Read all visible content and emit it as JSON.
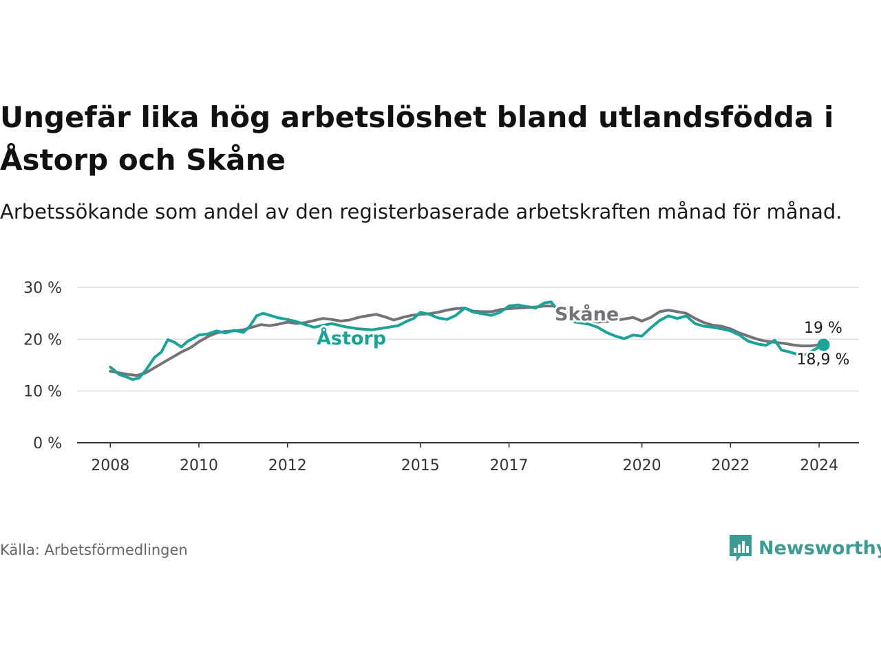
{
  "title": "Ungefär lika hög arbetslöshet bland utlandsfödda i Åstorp och Skåne",
  "subtitle": "Arbetssökande som andel av den registerbaserade arbetskraften månad för månad.",
  "source": "Källa: Arbetsförmedlingen",
  "brand": {
    "name": "Newsworthy",
    "color": "#3a9c93"
  },
  "chart_data": {
    "type": "line",
    "y_ticks": [
      "0 %",
      "10 %",
      "20 %",
      "30 %"
    ],
    "y_tick_values": [
      0,
      10,
      20,
      30
    ],
    "ylim": [
      0,
      30
    ],
    "x_ticks": [
      "2008",
      "2010",
      "2012",
      "2015",
      "2017",
      "2020",
      "2022",
      "2024"
    ],
    "x_tick_values": [
      2008,
      2010,
      2012,
      2015,
      2017,
      2020,
      2022,
      2024
    ],
    "xlim": [
      2007.25,
      2024.9
    ],
    "grid": true,
    "series": [
      {
        "name": "Skåne",
        "label": "Skåne",
        "end_label": "19 %",
        "color": "#737278",
        "points": [
          [
            2008,
            13.8
          ],
          [
            2008.2,
            13.5
          ],
          [
            2008.4,
            13.2
          ],
          [
            2008.6,
            13.0
          ],
          [
            2008.8,
            13.5
          ],
          [
            2009,
            14.5
          ],
          [
            2009.2,
            15.5
          ],
          [
            2009.4,
            16.5
          ],
          [
            2009.6,
            17.5
          ],
          [
            2009.8,
            18.3
          ],
          [
            2010,
            19.5
          ],
          [
            2010.2,
            20.5
          ],
          [
            2010.4,
            21.2
          ],
          [
            2010.6,
            21.5
          ],
          [
            2010.8,
            21.6
          ],
          [
            2011,
            21.8
          ],
          [
            2011.2,
            22.3
          ],
          [
            2011.4,
            22.8
          ],
          [
            2011.6,
            22.6
          ],
          [
            2011.8,
            22.9
          ],
          [
            2012,
            23.3
          ],
          [
            2012.2,
            23.0
          ],
          [
            2012.4,
            23.2
          ],
          [
            2012.6,
            23.6
          ],
          [
            2012.8,
            24.0
          ],
          [
            2013,
            23.8
          ],
          [
            2013.2,
            23.5
          ],
          [
            2013.4,
            23.7
          ],
          [
            2013.6,
            24.2
          ],
          [
            2013.8,
            24.5
          ],
          [
            2014,
            24.8
          ],
          [
            2014.2,
            24.3
          ],
          [
            2014.4,
            23.7
          ],
          [
            2014.6,
            24.2
          ],
          [
            2014.8,
            24.6
          ],
          [
            2015,
            24.8
          ],
          [
            2015.2,
            24.9
          ],
          [
            2015.4,
            25.2
          ],
          [
            2015.6,
            25.6
          ],
          [
            2015.8,
            25.9
          ],
          [
            2016,
            26.0
          ],
          [
            2016.2,
            25.4
          ],
          [
            2016.4,
            25.3
          ],
          [
            2016.6,
            25.3
          ],
          [
            2016.8,
            25.7
          ],
          [
            2017,
            25.9
          ],
          [
            2017.2,
            26.0
          ],
          [
            2017.4,
            26.1
          ],
          [
            2017.6,
            26.2
          ],
          [
            2017.8,
            26.4
          ],
          [
            2018,
            26.4
          ],
          [
            2018.2,
            25.6
          ],
          [
            2018.4,
            24.8
          ],
          [
            2018.6,
            24.1
          ],
          [
            2018.8,
            23.6
          ],
          [
            2019,
            23.3
          ],
          [
            2019.2,
            23.4
          ],
          [
            2019.4,
            23.6
          ],
          [
            2019.6,
            23.9
          ],
          [
            2019.8,
            24.2
          ],
          [
            2020,
            23.5
          ],
          [
            2020.2,
            24.2
          ],
          [
            2020.4,
            25.3
          ],
          [
            2020.6,
            25.6
          ],
          [
            2020.8,
            25.3
          ],
          [
            2021,
            25.0
          ],
          [
            2021.2,
            24.0
          ],
          [
            2021.4,
            23.2
          ],
          [
            2021.6,
            22.7
          ],
          [
            2021.8,
            22.5
          ],
          [
            2022,
            22.0
          ],
          [
            2022.2,
            21.2
          ],
          [
            2022.4,
            20.6
          ],
          [
            2022.6,
            20.0
          ],
          [
            2022.8,
            19.6
          ],
          [
            2023,
            19.4
          ],
          [
            2023.2,
            19.2
          ],
          [
            2023.4,
            18.9
          ],
          [
            2023.6,
            18.7
          ],
          [
            2023.8,
            18.7
          ],
          [
            2024,
            18.9
          ],
          [
            2024.1,
            19.0
          ]
        ]
      },
      {
        "name": "Åstorp",
        "label": "Åstorp",
        "end_label": "18,9 %",
        "color": "#1aa398",
        "points": [
          [
            2008,
            14.6
          ],
          [
            2008.2,
            13.2
          ],
          [
            2008.4,
            12.6
          ],
          [
            2008.5,
            12.2
          ],
          [
            2008.65,
            12.5
          ],
          [
            2008.8,
            14.0
          ],
          [
            2009,
            16.5
          ],
          [
            2009.15,
            17.5
          ],
          [
            2009.3,
            19.9
          ],
          [
            2009.45,
            19.4
          ],
          [
            2009.6,
            18.5
          ],
          [
            2009.75,
            19.6
          ],
          [
            2009.9,
            20.3
          ],
          [
            2010,
            20.8
          ],
          [
            2010.2,
            21.0
          ],
          [
            2010.4,
            21.6
          ],
          [
            2010.6,
            21.2
          ],
          [
            2010.8,
            21.7
          ],
          [
            2011,
            21.3
          ],
          [
            2011.15,
            22.5
          ],
          [
            2011.3,
            24.5
          ],
          [
            2011.45,
            25.0
          ],
          [
            2011.6,
            24.6
          ],
          [
            2011.8,
            24.1
          ],
          [
            2012,
            23.8
          ],
          [
            2012.2,
            23.4
          ],
          [
            2012.4,
            22.8
          ],
          [
            2012.6,
            22.3
          ],
          [
            2013,
            23.0
          ],
          [
            2013.3,
            22.4
          ],
          [
            2013.6,
            22.0
          ],
          [
            2013.9,
            21.8
          ],
          [
            2014.2,
            22.2
          ],
          [
            2014.5,
            22.6
          ],
          [
            2014.7,
            23.5
          ],
          [
            2014.85,
            24.0
          ],
          [
            2015,
            25.2
          ],
          [
            2015.2,
            24.8
          ],
          [
            2015.4,
            24.1
          ],
          [
            2015.6,
            23.8
          ],
          [
            2015.8,
            24.6
          ],
          [
            2016,
            26.0
          ],
          [
            2016.2,
            25.2
          ],
          [
            2016.4,
            24.9
          ],
          [
            2016.6,
            24.6
          ],
          [
            2016.8,
            25.2
          ],
          [
            2017,
            26.4
          ],
          [
            2017.2,
            26.6
          ],
          [
            2017.4,
            26.3
          ],
          [
            2017.6,
            26.0
          ],
          [
            2017.8,
            27.0
          ],
          [
            2017.95,
            27.2
          ],
          [
            2018.2,
            24.4
          ],
          [
            2018.5,
            23.3
          ],
          [
            2018.8,
            22.9
          ],
          [
            2019,
            22.3
          ],
          [
            2019.2,
            21.3
          ],
          [
            2019.4,
            20.6
          ],
          [
            2019.6,
            20.1
          ],
          [
            2019.8,
            20.8
          ],
          [
            2020,
            20.6
          ],
          [
            2020.2,
            22.2
          ],
          [
            2020.4,
            23.6
          ],
          [
            2020.6,
            24.5
          ],
          [
            2020.8,
            24.0
          ],
          [
            2021,
            24.5
          ],
          [
            2021.2,
            23.0
          ],
          [
            2021.4,
            22.5
          ],
          [
            2021.6,
            22.3
          ],
          [
            2021.8,
            22.0
          ],
          [
            2022,
            21.6
          ],
          [
            2022.2,
            20.8
          ],
          [
            2022.4,
            19.6
          ],
          [
            2022.6,
            19.1
          ],
          [
            2022.8,
            18.8
          ],
          [
            2023,
            19.8
          ],
          [
            2023.15,
            17.9
          ],
          [
            2023.3,
            17.6
          ],
          [
            2023.5,
            17.1
          ],
          [
            2023.7,
            17.0
          ],
          [
            2023.9,
            18.0
          ],
          [
            2024.1,
            18.9
          ]
        ]
      }
    ]
  }
}
